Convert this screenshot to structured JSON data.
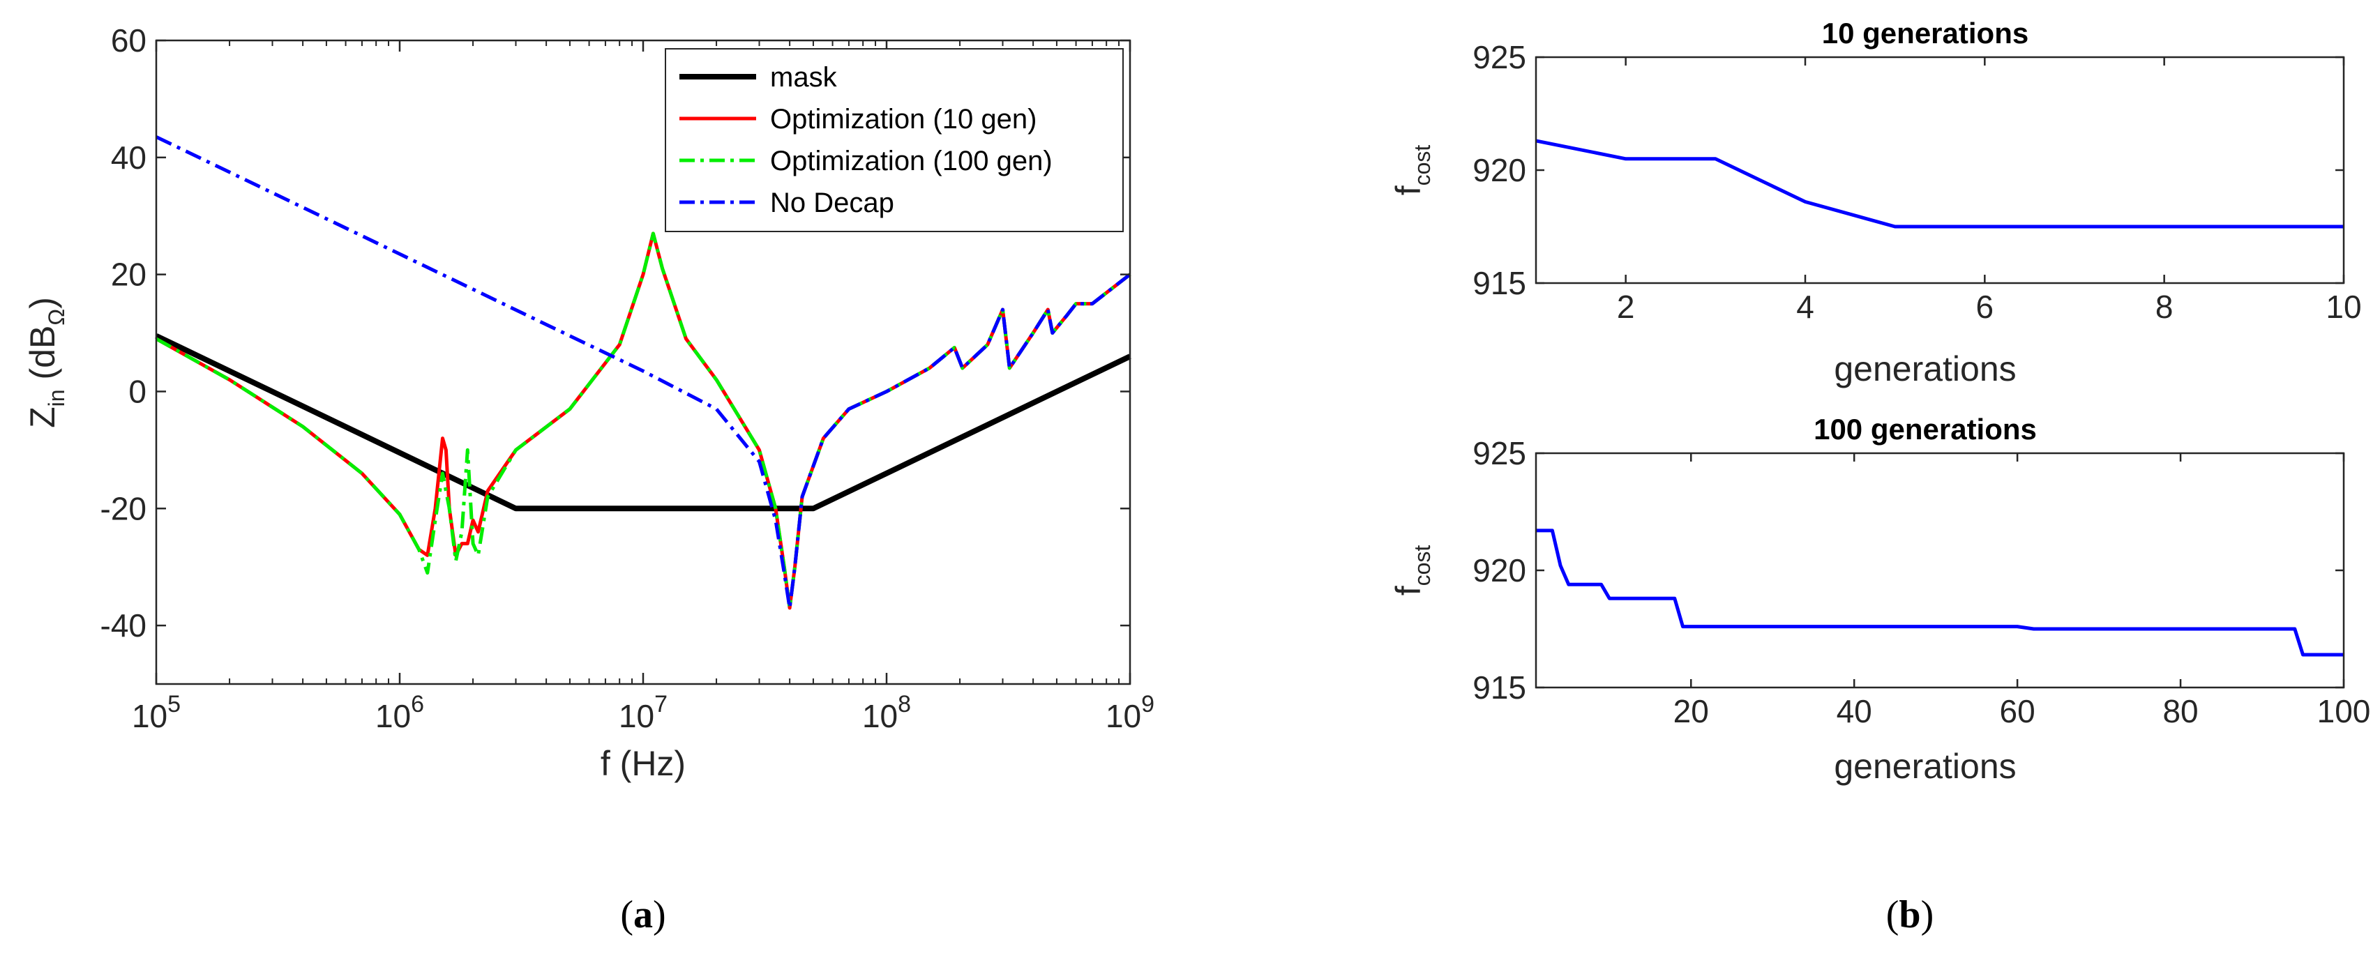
{
  "chart_data": [
    {
      "type": "line",
      "panel_label": "a",
      "xscale": "log",
      "xlim": [
        100000,
        1000000000
      ],
      "ylim": [
        -50,
        60
      ],
      "xlabel": "f (Hz)",
      "ylabel_main": "Z",
      "ylabel_sub": "in",
      "ylabel_unit_open": " (dB",
      "ylabel_unit_sub": "Ω",
      "ylabel_unit_close": ")",
      "xticks": [
        {
          "base": "10",
          "exp": "5",
          "value": 100000
        },
        {
          "base": "10",
          "exp": "6",
          "value": 1000000
        },
        {
          "base": "10",
          "exp": "7",
          "value": 10000000
        },
        {
          "base": "10",
          "exp": "8",
          "value": 100000000
        },
        {
          "base": "10",
          "exp": "9",
          "value": 1000000000
        }
      ],
      "yticks": [
        "-40",
        "-20",
        "0",
        "20",
        "40",
        "60"
      ],
      "legend_position": "top-right",
      "series": [
        {
          "name": "mask",
          "color": "#000000",
          "style": "solid",
          "x": [
            100000,
            3000000,
            50000000,
            1000000000
          ],
          "y": [
            9.5,
            -20,
            -20,
            6
          ]
        },
        {
          "name": "Optimization (10 gen)",
          "color": "#ff0000",
          "style": "solid",
          "x": [
            100000,
            200000,
            400000,
            700000,
            1000000,
            1200000,
            1300000,
            1400000,
            1500000,
            1550000,
            1600000,
            1700000,
            1800000,
            1900000,
            2000000,
            2100000,
            2300000,
            3000000,
            5000000,
            8000000,
            10000000,
            11000000,
            12000000,
            15000000,
            20000000,
            30000000,
            35000000,
            38000000,
            40000000,
            42000000,
            45000000,
            55000000,
            70000000,
            100000000,
            150000000,
            190000000,
            205000000,
            260000000,
            300000000,
            320000000,
            400000000,
            460000000,
            480000000,
            550000000,
            600000000,
            700000000,
            1000000000
          ],
          "y": [
            9,
            2,
            -6,
            -14,
            -21,
            -27,
            -28,
            -20,
            -8,
            -10,
            -20,
            -28,
            -26,
            -26,
            -22,
            -24,
            -17,
            -10,
            -3,
            8,
            20,
            27,
            21,
            9,
            2,
            -10,
            -20,
            -30,
            -37,
            -30,
            -18,
            -8,
            -3,
            0,
            4,
            7.5,
            4,
            8,
            14,
            4,
            10,
            14,
            10,
            13,
            15,
            15,
            20
          ]
        },
        {
          "name": "Optimization (100 gen)",
          "color": "#00ee00",
          "style": "dashdot",
          "x": [
            100000,
            200000,
            400000,
            700000,
            1000000,
            1200000,
            1300000,
            1400000,
            1500000,
            1600000,
            1700000,
            1800000,
            1900000,
            2000000,
            2100000,
            2300000,
            3000000,
            5000000,
            8000000,
            10000000,
            11000000,
            12000000,
            15000000,
            20000000,
            30000000,
            35000000,
            38000000,
            40000000,
            42000000,
            45000000,
            55000000,
            70000000,
            100000000,
            150000000,
            190000000,
            205000000,
            260000000,
            300000000,
            320000000,
            400000000,
            460000000,
            480000000,
            550000000,
            600000000,
            700000000,
            1000000000
          ],
          "y": [
            9,
            2,
            -6,
            -14,
            -21,
            -27,
            -31,
            -22,
            -14,
            -20,
            -29,
            -24,
            -10,
            -26,
            -28,
            -18,
            -10,
            -3,
            8,
            20,
            27,
            21,
            9,
            2,
            -10,
            -20,
            -30,
            -37,
            -30,
            -18,
            -8,
            -3,
            0,
            4,
            7.5,
            4,
            8,
            14,
            4,
            10,
            14,
            10,
            13,
            15,
            15,
            20
          ]
        },
        {
          "name": "No Decap",
          "color": "#0000ff",
          "style": "dashdot",
          "x": [
            100000,
            1000000,
            5000000,
            10000000,
            20000000,
            30000000,
            35000000,
            38000000,
            40000000,
            42000000,
            45000000,
            55000000,
            70000000,
            100000000,
            150000000,
            190000000,
            205000000,
            260000000,
            300000000,
            320000000,
            400000000,
            460000000,
            480000000,
            550000000,
            600000000,
            700000000,
            1000000000
          ],
          "y": [
            43.5,
            23.5,
            9.5,
            3.5,
            -3,
            -12,
            -22,
            -31,
            -37,
            -30,
            -18,
            -8,
            -3,
            0,
            4,
            7.5,
            4,
            8,
            14,
            4,
            10,
            14,
            10,
            13,
            15,
            15,
            20
          ]
        }
      ]
    },
    {
      "type": "line",
      "panel_label": "b",
      "title": "10 generations",
      "xlabel": "generations",
      "ylabel_main": "f",
      "ylabel_sub": "cost",
      "xlim": [
        1,
        10
      ],
      "ylim": [
        915,
        925
      ],
      "xticks": [
        "2",
        "4",
        "6",
        "8",
        "10"
      ],
      "yticks": [
        "915",
        "920",
        "925"
      ],
      "series": [
        {
          "name": "cost",
          "color": "#0000ff",
          "x": [
            1,
            2,
            3,
            4,
            5,
            10
          ],
          "y": [
            921.3,
            920.5,
            920.5,
            918.6,
            917.5,
            917.5
          ]
        }
      ]
    },
    {
      "type": "line",
      "panel_label": "b",
      "title": "100 generations",
      "xlabel": "generations",
      "ylabel_main": "f",
      "ylabel_sub": "cost",
      "xlim": [
        1,
        100
      ],
      "ylim": [
        915,
        925
      ],
      "xticks": [
        "20",
        "40",
        "60",
        "80",
        "100"
      ],
      "yticks": [
        "915",
        "920",
        "925"
      ],
      "series": [
        {
          "name": "cost",
          "color": "#0000ff",
          "x": [
            1,
            3,
            4,
            5,
            6,
            9,
            10,
            11,
            18,
            19,
            60,
            62,
            94,
            95,
            100
          ],
          "y": [
            921.7,
            921.7,
            920.2,
            919.4,
            919.4,
            919.4,
            918.8,
            918.8,
            918.8,
            917.6,
            917.6,
            917.5,
            917.5,
            916.4,
            916.4
          ]
        }
      ]
    }
  ],
  "captions": {
    "a": {
      "open": "(",
      "letter": "a",
      "close": ")"
    },
    "b": {
      "open": "(",
      "letter": "b",
      "close": ")"
    }
  }
}
